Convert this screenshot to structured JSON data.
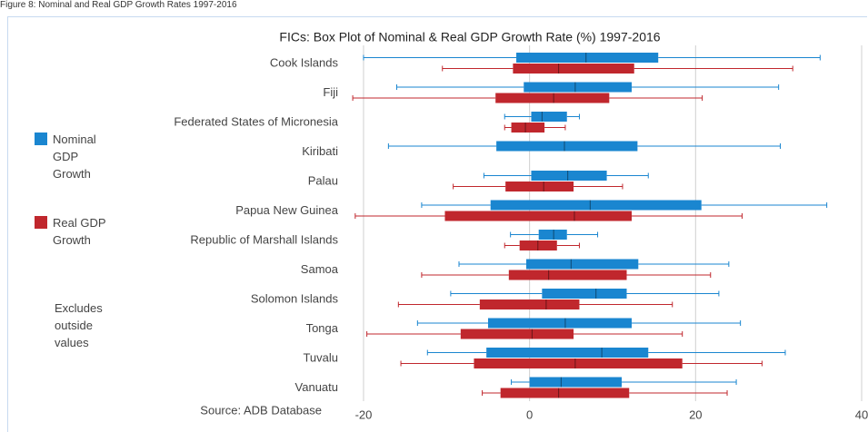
{
  "page_caption": "Figure 8: Nominal and Real GDP Growth Rates 1997-2016",
  "chart_data": {
    "type": "box",
    "title": "FICs: Box Plot of Nominal & Real GDP Growth Rate (%) 1997-2016",
    "note": "Excludes outside values",
    "source": "Source: ADB Database",
    "categories": [
      "Cook Islands",
      "Fiji",
      "Federated States of Micronesia",
      "Kiribati",
      "Palau",
      "Papua New Guinea",
      "Republic of Marshall Islands",
      "Samoa",
      "Solomon Islands",
      "Tonga",
      "Tuvalu",
      "Vanuatu"
    ],
    "series": [
      {
        "name": "Nominal GDP Growth",
        "color": "#1a86d0",
        "min": [
          -20,
          -16,
          -3,
          -17,
          -5.5,
          -13,
          -2.3,
          -8.5,
          -9.5,
          -13.5,
          -12.3,
          -2.2
        ],
        "q1": [
          -1.6,
          -0.7,
          0.2,
          -4,
          0.2,
          -4.7,
          1.1,
          -0.4,
          1.5,
          -5,
          -5.2,
          0
        ],
        "median": [
          6.8,
          5.5,
          1.5,
          4.2,
          4.6,
          7.3,
          2.9,
          5,
          8,
          4.3,
          8.7,
          3.8
        ],
        "q3": [
          15.5,
          12.3,
          4.5,
          13,
          9.3,
          20.7,
          4.5,
          13.1,
          11.7,
          12.3,
          14.3,
          11.1
        ],
        "max": [
          35,
          30,
          6,
          30.2,
          14.3,
          35.8,
          8.2,
          24,
          22.8,
          25.4,
          30.8,
          24.9
        ]
      },
      {
        "name": "Real GDP Growth",
        "color": "#c0272d",
        "min": [
          -10.5,
          -21.3,
          -3,
          null,
          -9.2,
          -21,
          -3,
          -13,
          -15.8,
          -19.6,
          -15.5,
          -5.7
        ],
        "q1": [
          -2,
          -4.1,
          -2.2,
          null,
          -2.9,
          -10.2,
          -1.2,
          -2.5,
          -6,
          -8.3,
          -6.7,
          -3.5
        ],
        "median": [
          3.5,
          2.9,
          -0.5,
          null,
          1.7,
          5.4,
          1,
          2.3,
          2,
          0.3,
          5.5,
          3.5
        ],
        "q3": [
          12.6,
          9.6,
          1.8,
          null,
          5.3,
          12.3,
          3.3,
          11.7,
          6,
          5.3,
          18.4,
          12
        ],
        "max": [
          31.7,
          20.8,
          4.3,
          null,
          11.2,
          25.6,
          6,
          21.8,
          17.2,
          18.4,
          28,
          23.8
        ]
      }
    ],
    "xlim": [
      -22,
      40
    ],
    "xticks": [
      -20,
      0,
      20,
      40
    ],
    "grid": true
  }
}
